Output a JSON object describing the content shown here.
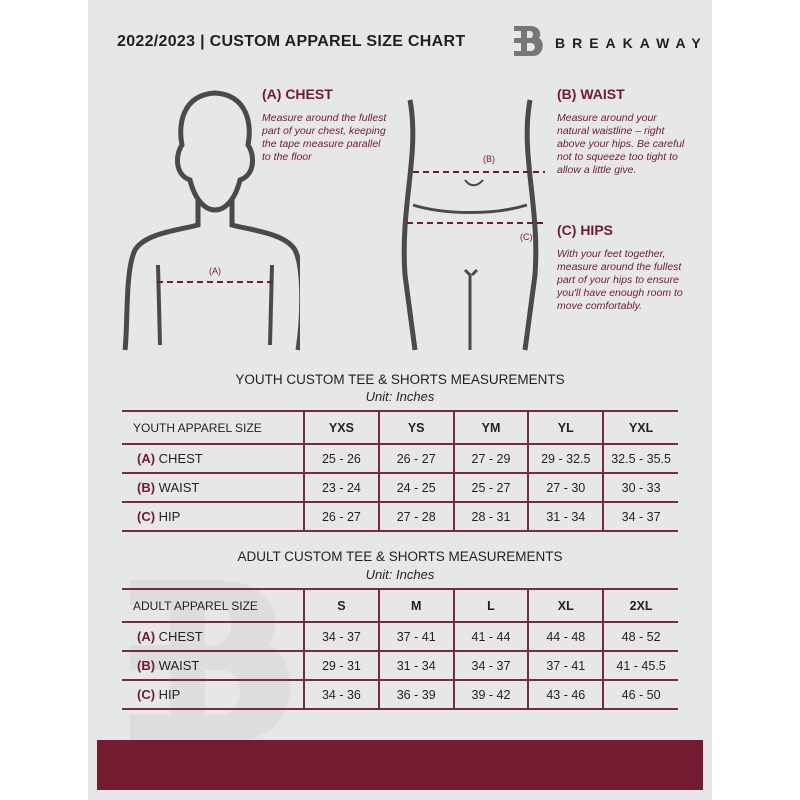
{
  "header": {
    "title": "2022/2023  |  CUSTOM APPAREL SIZE CHART",
    "brand": "BREAKAWAY",
    "logo_letter": "B"
  },
  "guide": {
    "chest": {
      "title": "(A) CHEST",
      "text": "Measure around the fullest part of your chest, keeping the tape measure parallel to the floor",
      "marker": "(A)"
    },
    "waist": {
      "title": "(B) WAIST",
      "text": "Measure around your natural waistline – right above your hips. Be careful not to squeeze too tight to allow a little give.",
      "marker": "(B)"
    },
    "hips": {
      "title": "(C) HIPS",
      "text": "With your feet together, measure around the fullest part of your hips to ensure you'll have enough room to move comfortably.",
      "marker": "(C)"
    }
  },
  "colors": {
    "accent": "#731b31",
    "background": "#e6e7e8"
  },
  "youth": {
    "title": "YOUTH CUSTOM TEE & SHORTS MEASUREMENTS",
    "unit": "Unit: Inches",
    "size_label": "YOUTH APPAREL SIZE",
    "sizes": [
      "YXS",
      "YS",
      "YM",
      "YL",
      "YXL"
    ],
    "rows": [
      {
        "code": "(A)",
        "label": "CHEST",
        "values": [
          "25 - 26",
          "26 - 27",
          "27 - 29",
          "29 - 32.5",
          "32.5 - 35.5"
        ]
      },
      {
        "code": "(B)",
        "label": "WAIST",
        "values": [
          "23 - 24",
          "24 - 25",
          "25 - 27",
          "27 - 30",
          "30 - 33"
        ]
      },
      {
        "code": "(C)",
        "label": "HIP",
        "values": [
          "26 - 27",
          "27 - 28",
          "28 - 31",
          "31 - 34",
          "34 - 37"
        ]
      }
    ]
  },
  "adult": {
    "title": "ADULT CUSTOM TEE & SHORTS MEASUREMENTS",
    "unit": "Unit: Inches",
    "size_label": "ADULT APPAREL SIZE",
    "sizes": [
      "S",
      "M",
      "L",
      "XL",
      "2XL"
    ],
    "rows": [
      {
        "code": "(A)",
        "label": "CHEST",
        "values": [
          "34 - 37",
          "37 - 41",
          "41 - 44",
          "44 - 48",
          "48 - 52"
        ]
      },
      {
        "code": "(B)",
        "label": "WAIST",
        "values": [
          "29 - 31",
          "31 - 34",
          "34 - 37",
          "37 - 41",
          "41 - 45.5"
        ]
      },
      {
        "code": "(C)",
        "label": "HIP",
        "values": [
          "34 - 36",
          "36 - 39",
          "39 - 42",
          "43 - 46",
          "46 - 50"
        ]
      }
    ]
  }
}
